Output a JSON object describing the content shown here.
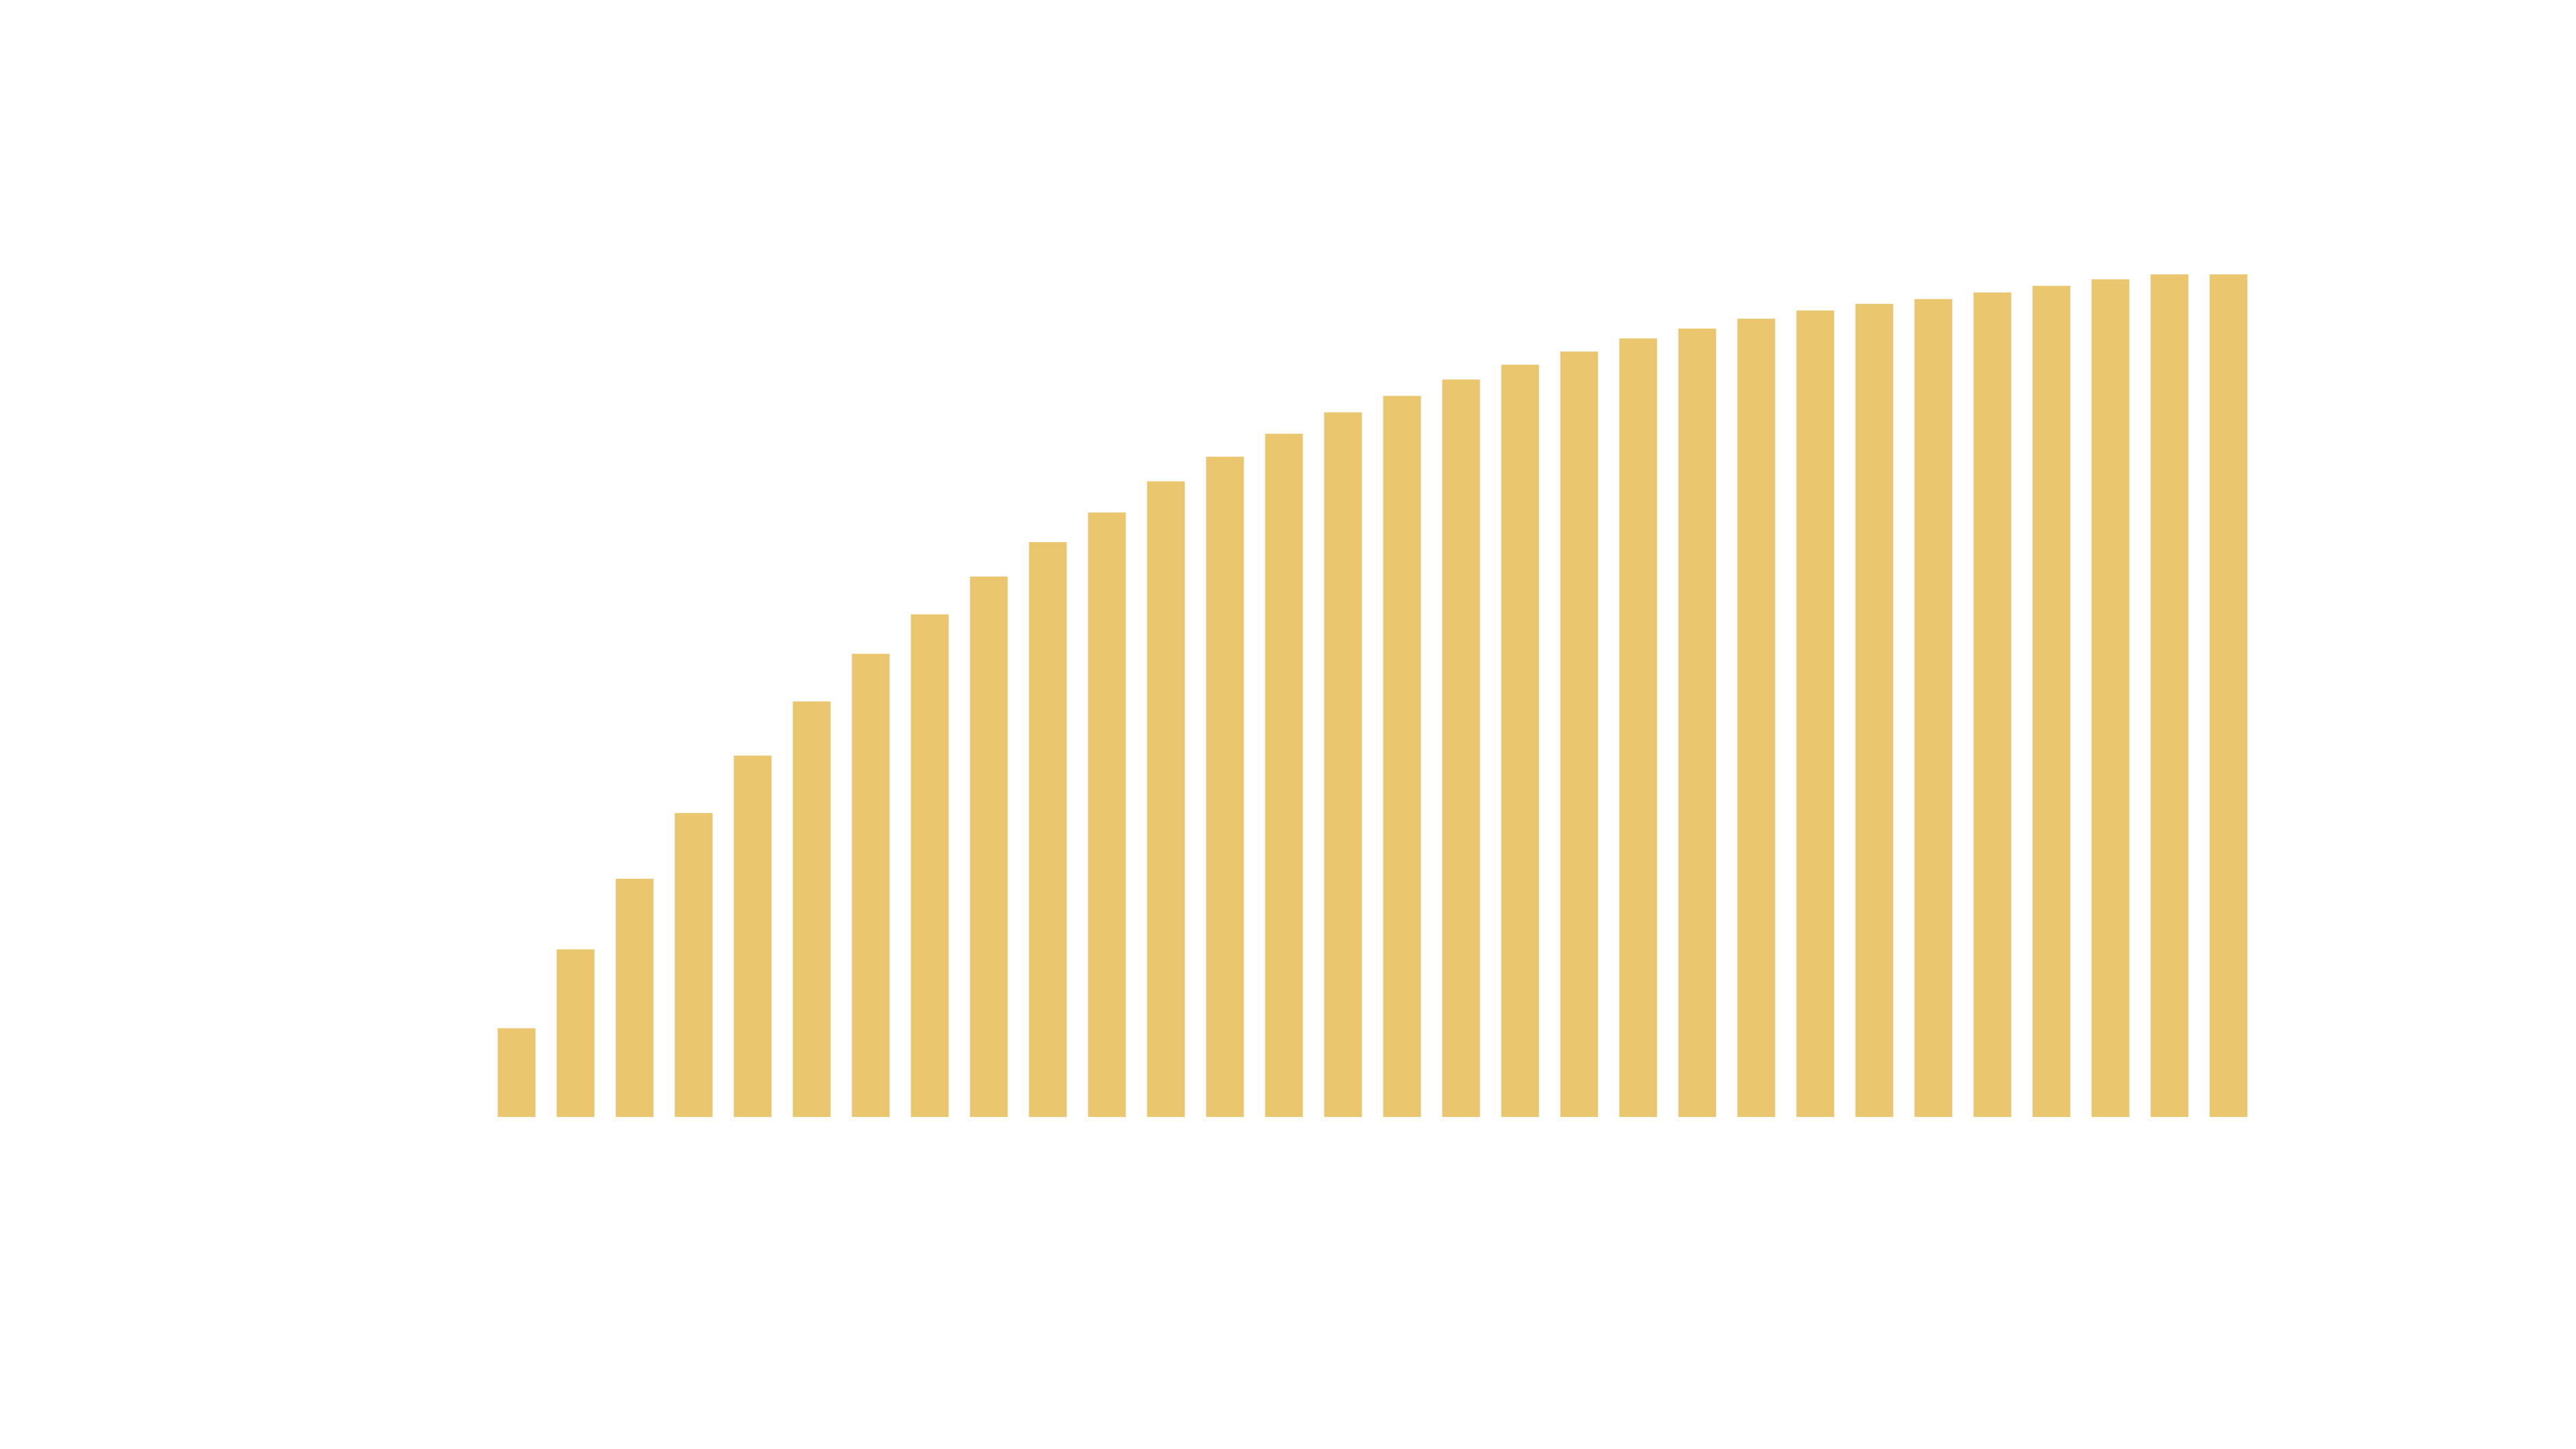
{
  "chart_data": {
    "type": "bar",
    "categories": [
      null,
      null,
      null,
      null,
      null,
      null,
      null,
      null,
      null,
      null,
      null,
      null,
      null,
      null,
      null,
      null,
      null,
      null,
      null,
      null,
      null,
      null,
      null,
      null,
      null,
      null,
      null,
      null,
      null,
      null
    ],
    "values": [
      54,
      102,
      145,
      185,
      220,
      253,
      282,
      306,
      329,
      350,
      368,
      387,
      402,
      416,
      429,
      439,
      449,
      458,
      466,
      474,
      480,
      486,
      491,
      495,
      498,
      502,
      506,
      510,
      513,
      513
    ],
    "color": "#eac76f",
    "ylim": [
      0,
      600
    ]
  }
}
